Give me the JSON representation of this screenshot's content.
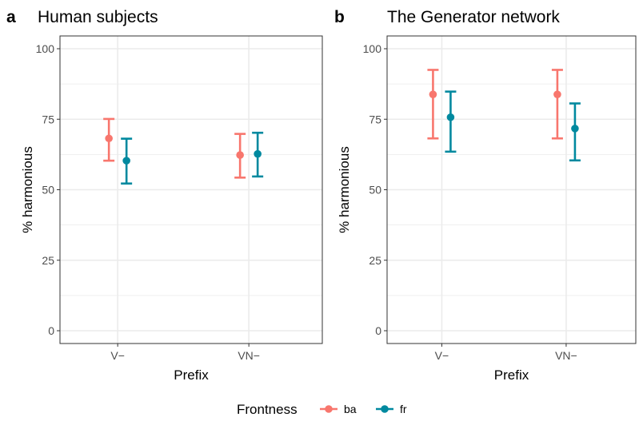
{
  "chart_data": [
    {
      "panel": "a",
      "type": "errorbar",
      "title": "Human subjects",
      "xlabel": "Prefix",
      "ylabel": "% harmonious",
      "categories": [
        "V−",
        "VN−"
      ],
      "ylim": [
        0,
        100
      ],
      "yticks": [
        0,
        25,
        50,
        75,
        100
      ],
      "grid": true,
      "series": [
        {
          "name": "ba",
          "color": "#f8766d",
          "values": [
            68.2,
            62.3
          ],
          "lower": [
            60.3,
            54.3
          ],
          "upper": [
            75.1,
            69.8
          ]
        },
        {
          "name": "fr",
          "color": "#00899f",
          "values": [
            60.3,
            62.7
          ],
          "lower": [
            52.2,
            54.7
          ],
          "upper": [
            68.1,
            70.2
          ]
        }
      ]
    },
    {
      "panel": "b",
      "type": "errorbar",
      "title": "The Generator network",
      "xlabel": "Prefix",
      "ylabel": "% harmonious",
      "categories": [
        "V−",
        "VN−"
      ],
      "ylim": [
        0,
        100
      ],
      "yticks": [
        0,
        25,
        50,
        75,
        100
      ],
      "grid": true,
      "series": [
        {
          "name": "ba",
          "color": "#f8766d",
          "values": [
            83.8,
            83.8
          ],
          "lower": [
            68.2,
            68.2
          ],
          "upper": [
            92.5,
            92.5
          ]
        },
        {
          "name": "fr",
          "color": "#00899f",
          "values": [
            75.7,
            71.7
          ],
          "lower": [
            63.5,
            60.4
          ],
          "upper": [
            84.8,
            80.6
          ]
        }
      ]
    }
  ],
  "legend": {
    "title": "Frontness",
    "position": "bottom",
    "items": [
      {
        "label": "ba",
        "color": "#f8766d"
      },
      {
        "label": "fr",
        "color": "#00899f"
      }
    ]
  }
}
